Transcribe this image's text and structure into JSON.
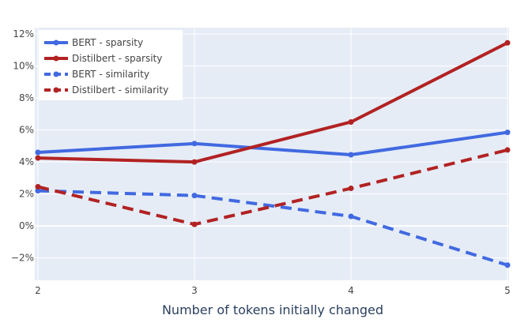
{
  "chart_data": {
    "type": "line",
    "xlabel": "Number of tokens initially changed",
    "x": [
      2,
      3,
      4,
      5
    ],
    "x_ticks": [
      "2",
      "3",
      "4",
      "5"
    ],
    "xlim": [
      2,
      5
    ],
    "y_ticks": [
      "−2%",
      "0%",
      "2%",
      "4%",
      "6%",
      "8%",
      "10%",
      "12%"
    ],
    "y_tick_values": [
      -2,
      0,
      2,
      4,
      6,
      8,
      10,
      12
    ],
    "ylim": [
      -3.4,
      12.4
    ],
    "grid": true,
    "legend_position": "top-left",
    "series": [
      {
        "name": "BERT - sparsity",
        "values": [
          4.6,
          5.15,
          4.45,
          5.85
        ],
        "color": "#4169E1",
        "dash": "solid"
      },
      {
        "name": "Distilbert - sparsity",
        "values": [
          4.25,
          4.0,
          6.5,
          11.45
        ],
        "color": "#B22222",
        "dash": "solid"
      },
      {
        "name": "BERT - similarity",
        "values": [
          2.2,
          1.9,
          0.6,
          -2.45
        ],
        "color": "#4169E1",
        "dash": "dash"
      },
      {
        "name": "Distilbert - similarity",
        "values": [
          2.45,
          0.1,
          2.35,
          4.75
        ],
        "color": "#B22222",
        "dash": "dash"
      }
    ],
    "colors": {
      "plot_bg": "#E5ECF6",
      "grid": "#ffffff",
      "text": "#444444",
      "axis_title": "#2a3f5f"
    }
  }
}
